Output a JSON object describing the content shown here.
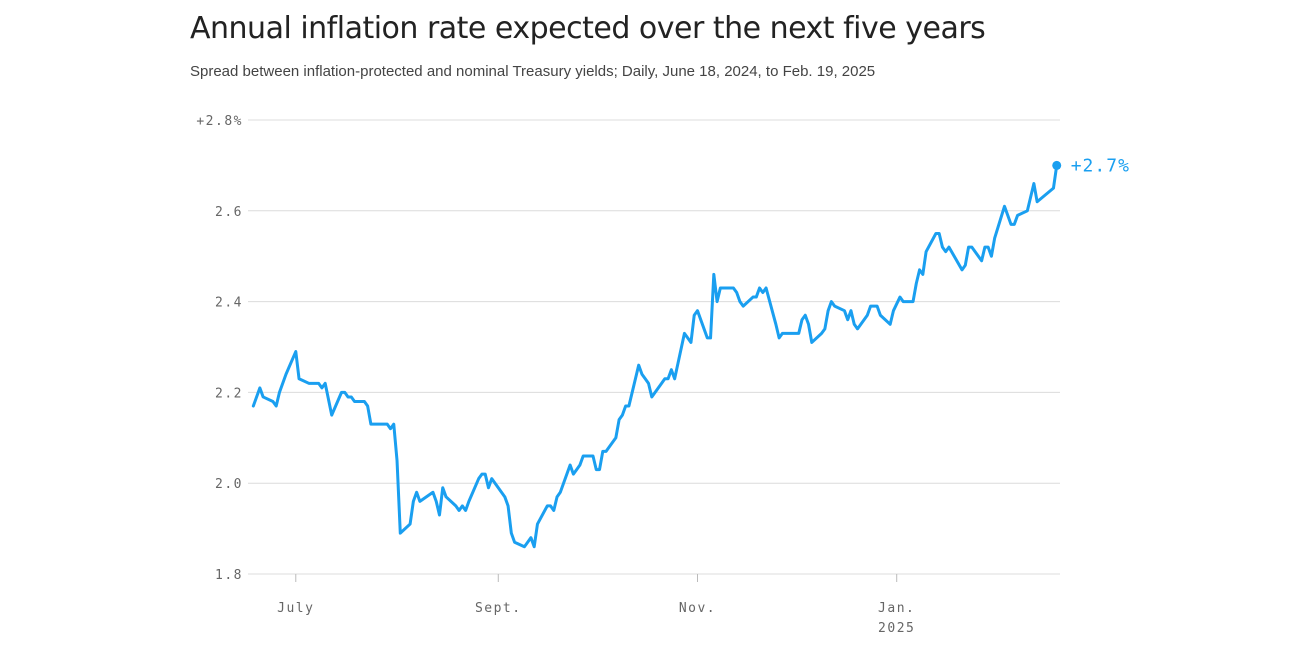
{
  "chart_data": {
    "type": "line",
    "title": "Annual inflation rate expected over the next five years",
    "subtitle": "Spread between inflation-protected and nominal Treasury yields; Daily, June 18, 2024, to Feb. 19, 2025",
    "end_label": "+2.7%",
    "color": "#1a9ff0",
    "grid": true,
    "xlim": [
      "2024-06-13",
      "2025-02-20"
    ],
    "xticks": [
      {
        "value": "2024-07-01",
        "label": "July"
      },
      {
        "value": "2024-09-01",
        "label": "Sept."
      },
      {
        "value": "2024-11-01",
        "label": "Nov."
      },
      {
        "value": "2025-01-01",
        "label": "Jan.",
        "sublabel": "2025"
      }
    ],
    "ylim": [
      1.8,
      2.8
    ],
    "yticks": [
      1.8,
      {
        "value": 2,
        "label": "2.0"
      },
      2.2,
      2.4,
      2.6,
      {
        "value": 2.8,
        "label": "+2.8%"
      }
    ],
    "x": [
      "2024-06-18",
      "2024-06-20",
      "2024-06-21",
      "2024-06-24",
      "2024-06-25",
      "2024-06-26",
      "2024-06-28",
      "2024-07-01",
      "2024-07-02",
      "2024-07-05",
      "2024-07-08",
      "2024-07-09",
      "2024-07-10",
      "2024-07-12",
      "2024-07-15",
      "2024-07-16",
      "2024-07-17",
      "2024-07-18",
      "2024-07-19",
      "2024-07-22",
      "2024-07-23",
      "2024-07-24",
      "2024-07-29",
      "2024-07-30",
      "2024-07-31",
      "2024-08-01",
      "2024-08-02",
      "2024-08-05",
      "2024-08-06",
      "2024-08-07",
      "2024-08-08",
      "2024-08-12",
      "2024-08-13",
      "2024-08-14",
      "2024-08-15",
      "2024-08-16",
      "2024-08-19",
      "2024-08-20",
      "2024-08-21",
      "2024-08-22",
      "2024-08-23",
      "2024-08-26",
      "2024-08-27",
      "2024-08-28",
      "2024-08-29",
      "2024-08-30",
      "2024-09-03",
      "2024-09-04",
      "2024-09-05",
      "2024-09-06",
      "2024-09-09",
      "2024-09-10",
      "2024-09-11",
      "2024-09-12",
      "2024-09-13",
      "2024-09-16",
      "2024-09-17",
      "2024-09-18",
      "2024-09-19",
      "2024-09-20",
      "2024-09-23",
      "2024-09-24",
      "2024-09-25",
      "2024-09-26",
      "2024-09-27",
      "2024-09-30",
      "2024-10-01",
      "2024-10-02",
      "2024-10-03",
      "2024-10-04",
      "2024-10-07",
      "2024-10-08",
      "2024-10-09",
      "2024-10-10",
      "2024-10-11",
      "2024-10-14",
      "2024-10-15",
      "2024-10-16",
      "2024-10-17",
      "2024-10-18",
      "2024-10-21",
      "2024-10-22",
      "2024-10-23",
      "2024-10-24",
      "2024-10-25",
      "2024-10-28",
      "2024-10-29",
      "2024-10-30",
      "2024-10-31",
      "2024-11-01",
      "2024-11-04",
      "2024-11-05",
      "2024-11-06",
      "2024-11-07",
      "2024-11-08",
      "2024-11-11",
      "2024-11-12",
      "2024-11-13",
      "2024-11-14",
      "2024-11-15",
      "2024-11-18",
      "2024-11-19",
      "2024-11-20",
      "2024-11-21",
      "2024-11-22",
      "2024-11-25",
      "2024-11-26",
      "2024-11-27",
      "2024-11-29",
      "2024-12-02",
      "2024-12-03",
      "2024-12-04",
      "2024-12-05",
      "2024-12-06",
      "2024-12-09",
      "2024-12-10",
      "2024-12-11",
      "2024-12-12",
      "2024-12-13",
      "2024-12-16",
      "2024-12-17",
      "2024-12-18",
      "2024-12-19",
      "2024-12-20",
      "2024-12-23",
      "2024-12-24",
      "2024-12-26",
      "2024-12-27",
      "2024-12-30",
      "2024-12-31",
      "2025-01-02",
      "2025-01-03",
      "2025-01-06",
      "2025-01-07",
      "2025-01-08",
      "2025-01-09",
      "2025-01-10",
      "2025-01-13",
      "2025-01-14",
      "2025-01-15",
      "2025-01-16",
      "2025-01-17",
      "2025-01-21",
      "2025-01-22",
      "2025-01-23",
      "2025-01-24",
      "2025-01-27",
      "2025-01-28",
      "2025-01-29",
      "2025-01-30",
      "2025-01-31",
      "2025-02-03",
      "2025-02-05",
      "2025-02-06",
      "2025-02-07",
      "2025-02-10",
      "2025-02-12",
      "2025-02-13",
      "2025-02-18",
      "2025-02-19"
    ],
    "values": [
      2.17,
      2.21,
      2.19,
      2.18,
      2.17,
      2.2,
      2.24,
      2.29,
      2.23,
      2.22,
      2.22,
      2.21,
      2.22,
      2.15,
      2.2,
      2.2,
      2.19,
      2.19,
      2.18,
      2.18,
      2.17,
      2.13,
      2.13,
      2.12,
      2.13,
      2.05,
      1.89,
      1.91,
      1.96,
      1.98,
      1.96,
      1.98,
      1.96,
      1.93,
      1.99,
      1.97,
      1.95,
      1.94,
      1.95,
      1.94,
      1.96,
      2.01,
      2.02,
      2.02,
      1.99,
      2.01,
      1.97,
      1.95,
      1.89,
      1.87,
      1.86,
      1.87,
      1.88,
      1.86,
      1.91,
      1.95,
      1.95,
      1.94,
      1.97,
      1.98,
      2.04,
      2.02,
      2.03,
      2.04,
      2.06,
      2.06,
      2.03,
      2.03,
      2.07,
      2.07,
      2.1,
      2.14,
      2.15,
      2.17,
      2.17,
      2.26,
      2.24,
      2.23,
      2.22,
      2.19,
      2.22,
      2.23,
      2.23,
      2.25,
      2.23,
      2.33,
      2.32,
      2.31,
      2.37,
      2.38,
      2.32,
      2.32,
      2.46,
      2.4,
      2.43,
      2.43,
      2.43,
      2.42,
      2.4,
      2.39,
      2.41,
      2.41,
      2.43,
      2.42,
      2.43,
      2.35,
      2.32,
      2.33,
      2.33,
      2.33,
      2.36,
      2.37,
      2.35,
      2.31,
      2.33,
      2.34,
      2.38,
      2.4,
      2.39,
      2.38,
      2.36,
      2.38,
      2.35,
      2.34,
      2.37,
      2.39,
      2.39,
      2.37,
      2.35,
      2.38,
      2.41,
      2.4,
      2.4,
      2.44,
      2.47,
      2.46,
      2.51,
      2.55,
      2.55,
      2.52,
      2.51,
      2.52,
      2.47,
      2.48,
      2.52,
      2.52,
      2.49,
      2.52,
      2.52,
      2.5,
      2.54,
      2.61,
      2.57,
      2.57,
      2.59,
      2.6,
      2.66,
      2.62,
      2.65,
      2.7
    ]
  }
}
